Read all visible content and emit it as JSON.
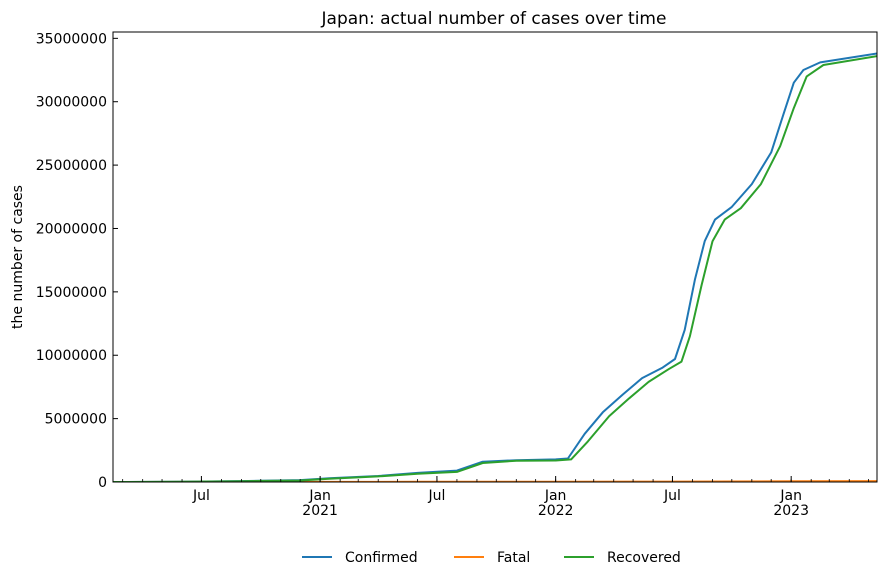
{
  "chart_data": {
    "type": "line",
    "title": "Japan: actual number of cases over time",
    "xlabel": "",
    "ylabel": "the number of cases",
    "xlim": [
      "2020-02-15",
      "2023-05-14"
    ],
    "ylim": [
      0,
      35500000
    ],
    "yticks": [
      0,
      5000000,
      10000000,
      15000000,
      20000000,
      25000000,
      30000000,
      35000000
    ],
    "ytick_labels": [
      "0",
      "5000000",
      "10000000",
      "15000000",
      "20000000",
      "25000000",
      "30000000",
      "35000000"
    ],
    "xticks": [
      {
        "date": "2020-07-01",
        "label": "Jul",
        "year": ""
      },
      {
        "date": "2021-01-01",
        "label": "Jan",
        "year": "2021"
      },
      {
        "date": "2021-07-01",
        "label": "Jul",
        "year": ""
      },
      {
        "date": "2022-01-01",
        "label": "Jan",
        "year": "2022"
      },
      {
        "date": "2022-07-01",
        "label": "Jul",
        "year": ""
      },
      {
        "date": "2023-01-01",
        "label": "Jan",
        "year": "2023"
      }
    ],
    "grid": false,
    "legend_position": "bottom-center",
    "series": [
      {
        "name": "Confirmed",
        "color": "#1f77b4",
        "points": [
          [
            "2020-02-15",
            0
          ],
          [
            "2020-06-01",
            17000
          ],
          [
            "2020-09-01",
            70000
          ],
          [
            "2020-12-01",
            150000
          ],
          [
            "2021-01-15",
            300000
          ],
          [
            "2021-04-01",
            470000
          ],
          [
            "2021-06-01",
            720000
          ],
          [
            "2021-08-01",
            900000
          ],
          [
            "2021-09-10",
            1600000
          ],
          [
            "2021-11-01",
            1720000
          ],
          [
            "2022-01-01",
            1780000
          ],
          [
            "2022-01-20",
            1850000
          ],
          [
            "2022-02-15",
            3800000
          ],
          [
            "2022-03-15",
            5500000
          ],
          [
            "2022-04-15",
            6900000
          ],
          [
            "2022-05-15",
            8200000
          ],
          [
            "2022-06-15",
            9000000
          ],
          [
            "2022-07-05",
            9700000
          ],
          [
            "2022-07-20",
            12000000
          ],
          [
            "2022-08-05",
            16000000
          ],
          [
            "2022-08-20",
            19000000
          ],
          [
            "2022-09-05",
            20700000
          ],
          [
            "2022-10-01",
            21700000
          ],
          [
            "2022-11-01",
            23500000
          ],
          [
            "2022-12-01",
            26000000
          ],
          [
            "2022-12-20",
            29000000
          ],
          [
            "2023-01-05",
            31500000
          ],
          [
            "2023-01-20",
            32500000
          ],
          [
            "2023-02-15",
            33100000
          ],
          [
            "2023-05-14",
            33800000
          ]
        ]
      },
      {
        "name": "Fatal",
        "color": "#ff7f0e",
        "points": [
          [
            "2020-02-15",
            0
          ],
          [
            "2021-06-01",
            14000
          ],
          [
            "2022-01-01",
            18400
          ],
          [
            "2022-07-01",
            31000
          ],
          [
            "2023-01-01",
            57000
          ],
          [
            "2023-05-14",
            74000
          ]
        ]
      },
      {
        "name": "Recovered",
        "color": "#2ca02c",
        "points": [
          [
            "2020-02-15",
            0
          ],
          [
            "2020-06-01",
            15000
          ],
          [
            "2020-09-01",
            62000
          ],
          [
            "2020-12-01",
            120000
          ],
          [
            "2021-01-15",
            250000
          ],
          [
            "2021-04-01",
            440000
          ],
          [
            "2021-06-01",
            650000
          ],
          [
            "2021-08-01",
            800000
          ],
          [
            "2021-09-10",
            1500000
          ],
          [
            "2021-11-01",
            1680000
          ],
          [
            "2022-01-01",
            1700000
          ],
          [
            "2022-01-25",
            1780000
          ],
          [
            "2022-02-20",
            3200000
          ],
          [
            "2022-03-25",
            5200000
          ],
          [
            "2022-04-25",
            6600000
          ],
          [
            "2022-05-25",
            7900000
          ],
          [
            "2022-06-25",
            8900000
          ],
          [
            "2022-07-15",
            9500000
          ],
          [
            "2022-07-28",
            11500000
          ],
          [
            "2022-08-15",
            15500000
          ],
          [
            "2022-09-01",
            19000000
          ],
          [
            "2022-09-20",
            20700000
          ],
          [
            "2022-10-15",
            21600000
          ],
          [
            "2022-11-15",
            23500000
          ],
          [
            "2022-12-15",
            26500000
          ],
          [
            "2023-01-05",
            29500000
          ],
          [
            "2023-01-25",
            32000000
          ],
          [
            "2023-02-20",
            32900000
          ],
          [
            "2023-05-14",
            33600000
          ]
        ]
      }
    ]
  }
}
